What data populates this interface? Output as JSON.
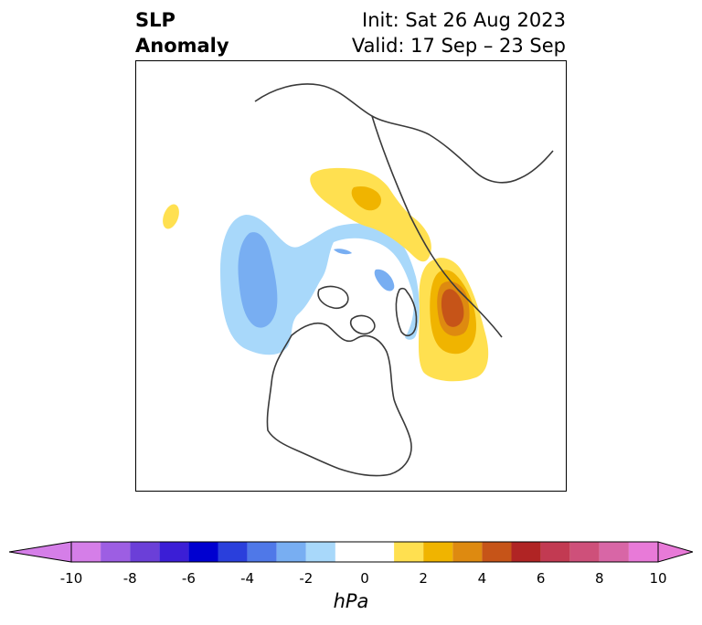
{
  "title": {
    "left_line1": "SLP",
    "left_line2": "Anomaly",
    "init": "Init: Sat 26 Aug 2023",
    "valid": "Valid: 17 Sep – 23 Sep"
  },
  "colorbar": {
    "units": "hPa",
    "ticks": [
      "-10",
      "-8",
      "-6",
      "-4",
      "-2",
      "0",
      "2",
      "4",
      "6",
      "8",
      "10"
    ],
    "colors": [
      "#d57ee8",
      "#9d5ee3",
      "#6b3fd8",
      "#3b1ed6",
      "#0000d0",
      "#2a3fdc",
      "#4f78e8",
      "#78aef2",
      "#a8d8fa",
      "#ffffff",
      "#ffe050",
      "#f0b400",
      "#de8a10",
      "#c65418",
      "#b02424",
      "#c23a52",
      "#ce507a",
      "#d866a6",
      "#e87ad8"
    ],
    "extend_min_color": "#d57ee8",
    "extend_max_color": "#e87ad8"
  },
  "map": {
    "anomaly_colors": {
      "light_blue": "#a8d8fa",
      "mid_blue": "#78aef2",
      "yellow": "#ffe050",
      "gold": "#f0b400",
      "orange": "#de8a10",
      "dark_orange": "#c65418"
    }
  }
}
